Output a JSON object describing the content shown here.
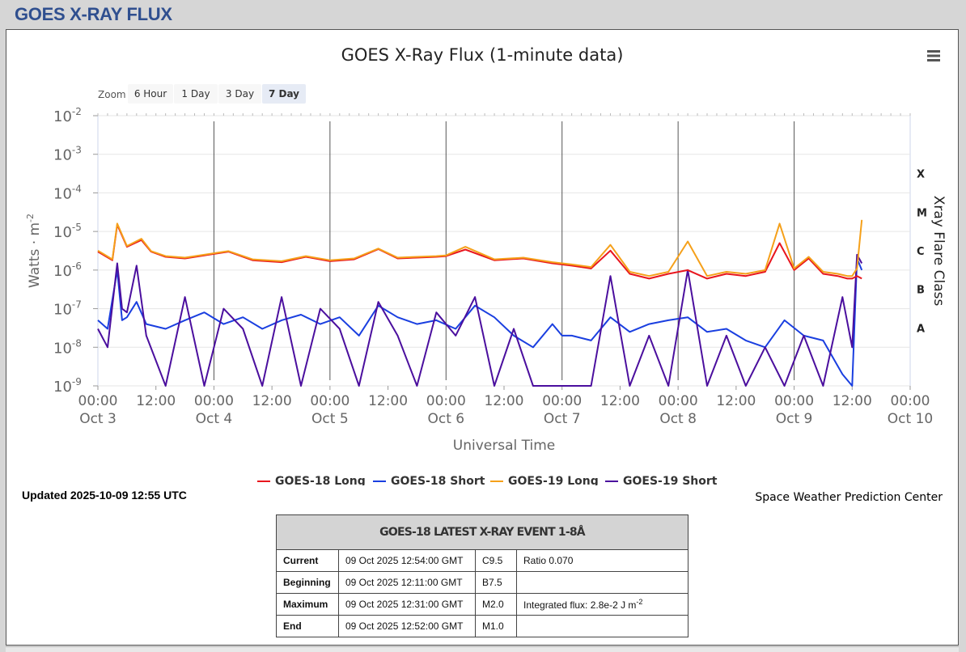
{
  "page_title": "GOES X-RAY FLUX",
  "updated": "Updated 2025-10-09 12:55 UTC",
  "credit": "Space Weather Prediction Center",
  "zoom": {
    "label": "Zoom",
    "buttons": [
      "6 Hour",
      "1 Day",
      "3 Day",
      "7 Day"
    ],
    "selected": "7 Day"
  },
  "menu_icon": "hamburger-menu-icon",
  "chart_data": {
    "type": "line",
    "title": "GOES X-Ray Flux (1-minute data)",
    "xlabel": "Universal Time",
    "ylabel": "Watts · m",
    "ylabel_sup": "-2",
    "y2label": "Xray Flare Class",
    "yscale": "log",
    "ylim": [
      1e-09,
      0.01
    ],
    "y_ticks": [
      {
        "base": "10",
        "exp": "-2"
      },
      {
        "base": "10",
        "exp": "-3"
      },
      {
        "base": "10",
        "exp": "-4"
      },
      {
        "base": "10",
        "exp": "-5"
      },
      {
        "base": "10",
        "exp": "-6"
      },
      {
        "base": "10",
        "exp": "-7"
      },
      {
        "base": "10",
        "exp": "-8"
      },
      {
        "base": "10",
        "exp": "-9"
      }
    ],
    "flare_classes": [
      {
        "label": "X",
        "value": 0.0001
      },
      {
        "label": "M",
        "value": 1e-05
      },
      {
        "label": "C",
        "value": 1e-06
      },
      {
        "label": "B",
        "value": 1e-07
      },
      {
        "label": "A",
        "value": 1e-08
      }
    ],
    "xlim": [
      "2025-10-03 00:00",
      "2025-10-10 00:00"
    ],
    "x_ticks": [
      {
        "time": "00:00",
        "date": "Oct 3"
      },
      {
        "time": "12:00",
        "date": ""
      },
      {
        "time": "00:00",
        "date": "Oct 4"
      },
      {
        "time": "12:00",
        "date": ""
      },
      {
        "time": "00:00",
        "date": "Oct 5"
      },
      {
        "time": "12:00",
        "date": ""
      },
      {
        "time": "00:00",
        "date": "Oct 6"
      },
      {
        "time": "12:00",
        "date": ""
      },
      {
        "time": "00:00",
        "date": "Oct 7"
      },
      {
        "time": "12:00",
        "date": ""
      },
      {
        "time": "00:00",
        "date": "Oct 8"
      },
      {
        "time": "12:00",
        "date": ""
      },
      {
        "time": "00:00",
        "date": "Oct 9"
      },
      {
        "time": "12:00",
        "date": ""
      },
      {
        "time": "00:00",
        "date": "Oct 10"
      }
    ],
    "legend_position": "bottom-center",
    "series": [
      {
        "name": "GOES-18 Long",
        "color": "#e8161e",
        "x_hours": [
          0,
          3,
          4,
          6,
          9,
          11,
          14,
          18,
          22,
          27,
          32,
          38,
          43,
          48,
          53,
          58,
          62,
          66,
          70,
          72,
          76,
          82,
          88,
          94,
          98,
          102,
          106,
          110,
          114,
          118,
          122,
          126,
          130,
          134,
          138,
          141,
          144,
          147,
          150,
          153,
          155,
          156,
          157,
          158
        ],
        "values": [
          3e-06,
          1.8e-06,
          1.5e-05,
          4e-06,
          6e-06,
          3e-06,
          2.2e-06,
          2e-06,
          2.4e-06,
          3e-06,
          1.8e-06,
          1.6e-06,
          2.2e-06,
          1.7e-06,
          1.9e-06,
          3.5e-06,
          2e-06,
          2.1e-06,
          2.2e-06,
          2.3e-06,
          3.4e-06,
          1.8e-06,
          2e-06,
          1.5e-06,
          1.3e-06,
          1.1e-06,
          3.2e-06,
          8e-07,
          6e-07,
          8e-07,
          1e-06,
          6e-07,
          8e-07,
          7e-07,
          9e-07,
          5e-06,
          1e-06,
          2e-06,
          8e-07,
          7e-07,
          6e-07,
          6e-07,
          7e-07,
          6e-07
        ]
      },
      {
        "name": "GOES-18 Short",
        "color": "#1a3fe0",
        "x_hours": [
          0,
          2,
          4,
          5,
          6,
          8,
          10,
          14,
          18,
          22,
          26,
          30,
          34,
          38,
          42,
          46,
          50,
          54,
          58,
          62,
          66,
          70,
          74,
          78,
          82,
          86,
          90,
          94,
          96,
          98,
          102,
          106,
          110,
          114,
          118,
          122,
          126,
          130,
          134,
          138,
          142,
          146,
          150,
          154,
          156,
          157,
          158
        ],
        "values": [
          5e-08,
          3e-08,
          1e-06,
          5e-08,
          6e-08,
          1.5e-07,
          4e-08,
          3e-08,
          5e-08,
          8e-08,
          4e-08,
          6e-08,
          3e-08,
          5e-08,
          7e-08,
          4e-08,
          6e-08,
          2e-08,
          1.2e-07,
          6e-08,
          4e-08,
          5e-08,
          3e-08,
          1.2e-07,
          6e-08,
          2e-08,
          1e-08,
          4e-08,
          2e-08,
          2e-08,
          1.5e-08,
          6e-08,
          2.5e-08,
          4e-08,
          5e-08,
          6e-08,
          2.5e-08,
          3e-08,
          1.5e-08,
          1e-08,
          5e-08,
          2e-08,
          1.5e-08,
          2e-09,
          1e-09,
          2e-06,
          1e-06
        ]
      },
      {
        "name": "GOES-19 Long",
        "color": "#f5a01a",
        "x_hours": [
          0,
          3,
          4,
          6,
          9,
          11,
          14,
          18,
          22,
          27,
          32,
          38,
          43,
          48,
          53,
          58,
          62,
          66,
          70,
          72,
          76,
          82,
          88,
          94,
          98,
          102,
          106,
          110,
          114,
          118,
          122,
          126,
          130,
          134,
          138,
          141,
          144,
          147,
          150,
          153,
          155,
          156,
          157,
          158
        ],
        "values": [
          3.2e-06,
          1.9e-06,
          1.6e-05,
          4.2e-06,
          6.5e-06,
          3.1e-06,
          2.3e-06,
          2.1e-06,
          2.5e-06,
          3.1e-06,
          1.9e-06,
          1.7e-06,
          2.3e-06,
          1.8e-06,
          2e-06,
          3.6e-06,
          2.1e-06,
          2.2e-06,
          2.3e-06,
          2.4e-06,
          4e-06,
          1.9e-06,
          2.1e-06,
          1.6e-06,
          1.4e-06,
          1.2e-06,
          4.5e-06,
          9e-07,
          7e-07,
          9e-07,
          5.5e-06,
          7e-07,
          9e-07,
          8e-07,
          1e-06,
          1.6e-05,
          1.1e-06,
          2.2e-06,
          9e-07,
          8e-07,
          7e-07,
          7e-07,
          1.1e-06,
          2e-05
        ]
      },
      {
        "name": "GOES-19 Short",
        "color": "#4b0f9e",
        "x_hours": [
          0,
          2,
          4,
          5,
          6,
          8,
          10,
          14,
          18,
          22,
          26,
          30,
          34,
          38,
          42,
          46,
          50,
          54,
          58,
          62,
          66,
          70,
          74,
          78,
          82,
          86,
          90,
          94,
          96,
          98,
          102,
          106,
          110,
          114,
          118,
          122,
          126,
          130,
          134,
          138,
          142,
          146,
          150,
          154,
          156,
          157,
          158
        ],
        "values": [
          3e-08,
          1e-08,
          1.5e-06,
          1e-07,
          8e-08,
          1.3e-06,
          2e-08,
          1e-09,
          2e-07,
          1e-09,
          1e-07,
          3e-08,
          1e-09,
          2e-07,
          1e-09,
          1e-07,
          3e-08,
          1e-09,
          1.5e-07,
          2e-08,
          1e-09,
          8e-08,
          2e-08,
          2e-07,
          1e-09,
          3e-08,
          1e-09,
          1e-09,
          1e-09,
          1e-09,
          1e-09,
          7e-07,
          1e-09,
          2e-08,
          1e-09,
          1e-06,
          1e-09,
          2e-08,
          1e-09,
          1e-08,
          1e-09,
          2e-08,
          1e-09,
          2e-07,
          1e-08,
          2.5e-06,
          1.5e-06
        ]
      }
    ]
  },
  "event_table": {
    "title": "GOES-18 LATEST X-RAY EVENT 1-8Å",
    "rows": [
      {
        "label": "Current",
        "time": "09 Oct 2025 12:54:00 GMT",
        "class": "C9.5",
        "note": "Ratio 0.070"
      },
      {
        "label": "Beginning",
        "time": "09 Oct 2025 12:11:00 GMT",
        "class": "B7.5",
        "note": ""
      },
      {
        "label": "Maximum",
        "time": "09 Oct 2025 12:31:00 GMT",
        "class": "M2.0",
        "note": "Integrated flux: 2.8e-2 J m",
        "note_sup": "-2"
      },
      {
        "label": "End",
        "time": "09 Oct 2025 12:52:00 GMT",
        "class": "M1.0",
        "note": ""
      }
    ]
  }
}
